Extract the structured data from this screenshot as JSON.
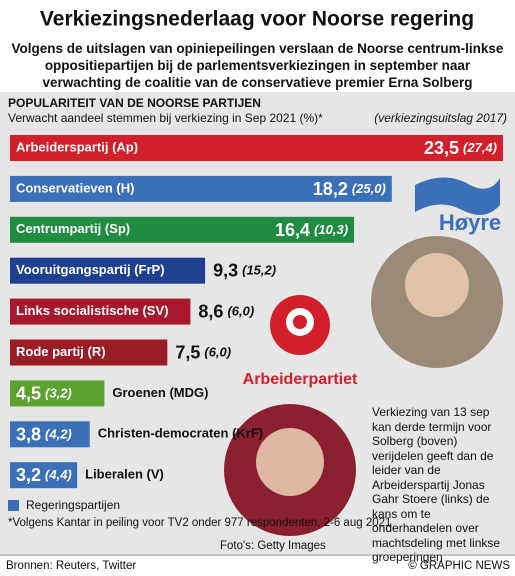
{
  "chart_data": {
    "type": "bar",
    "orientation": "horizontal",
    "title": "Verkiezingsnederlaag voor Noorse regering",
    "subtitle": "Volgens de uitslagen van opiniepeilingen verslaan de Noorse centrum-linkse oppositiepartijen bij de parlementsverkiezingen in september naar verwachting de coalitie van de conservatieve premier Erna Solberg",
    "section_title": "POPULARITEIT VAN DE NOORSE PARTIJEN",
    "value_axis_label": "Verwacht aandeel stemmen bij verkiezing in Sep 2021 (%)*",
    "previous_label": "(verkiezingsuitslag 2017)",
    "categories": [
      "Arbeiderspartij (Ap)",
      "Conservatieven (H)",
      "Centrumpartij (Sp)",
      "Vooruitgangspartij (FrP)",
      "Links socialistische (SV)",
      "Rode partij (R)",
      "Groenen (MDG)",
      "Christen-democraten (KrF)",
      "Liberalen (V)"
    ],
    "values": [
      23.5,
      18.2,
      16.4,
      9.3,
      8.6,
      7.5,
      4.5,
      3.8,
      3.2
    ],
    "value_labels": [
      "23,5",
      "18,2",
      "16,4",
      "9,3",
      "8,6",
      "7,5",
      "4,5",
      "3,8",
      "3,2"
    ],
    "values_2017": [
      27.4,
      25.0,
      10.3,
      15.2,
      6.0,
      6.0,
      3.2,
      4.2,
      4.4
    ],
    "value_labels_2017": [
      "(27,4)",
      "(25,0)",
      "(10,3)",
      "(15,2)",
      "(6,0)",
      "(6,0)",
      "(3,2)",
      "(4,2)",
      "(4,4)"
    ],
    "colors": [
      "#d21f2b",
      "#3b70b8",
      "#1f8c3f",
      "#1f3f90",
      "#a8182c",
      "#9a1c24",
      "#5ba22e",
      "#3b70b8",
      "#3b70b8"
    ],
    "xlim": [
      0,
      23.5
    ],
    "legend": {
      "label": "Regeringspartijen",
      "color": "#3b70b8"
    },
    "footnote": "*Volgens Kantar in peiling voor TV2 onder 977 respondenten, 2-6 aug 2021",
    "photo_credit": "Foto's: Getty Images",
    "sources": "Bronnen: Reuters, Twitter",
    "copyright": "© GRAPHIC NEWS",
    "logo_hoyre": "Høyre",
    "logo_ap": "Arbeiderpartiet",
    "caption": "Verkiezing van 13 sep kan derde termijn voor Solberg (boven) verijdelen geeft dan de leider van de Arbeiderspartij Jonas Gahr Stoere (links) de kans om te onderhandelen over machtsdeling met linkse groeperingen"
  }
}
